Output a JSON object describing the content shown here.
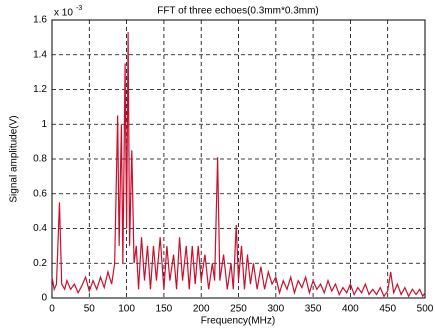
{
  "chart_data": {
    "type": "line",
    "title": "FFT of three echoes(0.3mm*0.3mm)",
    "x_label": "Frequency(MHz)",
    "y_label": "Signal amplitude(V)",
    "y_multiplier": "x 10",
    "y_multiplier_exponent": "-3",
    "color": "#c8102e",
    "grid": true,
    "xlim": [
      0,
      500
    ],
    "ylim": [
      0,
      1.6
    ],
    "xticks": [
      0,
      50,
      100,
      150,
      200,
      250,
      300,
      350,
      400,
      450,
      500
    ],
    "yticks": [
      0,
      0.2,
      0.4,
      0.6,
      0.8,
      1,
      1.2,
      1.4,
      1.6
    ],
    "x": [
      0,
      3,
      6,
      10,
      13,
      17,
      20,
      25,
      30,
      35,
      40,
      45,
      50,
      55,
      60,
      65,
      70,
      75,
      80,
      84,
      88,
      90,
      93,
      95,
      98,
      100,
      102,
      104,
      107,
      110,
      113,
      116,
      120,
      124,
      128,
      132,
      136,
      140,
      145,
      150,
      154,
      158,
      163,
      167,
      171,
      175,
      180,
      184,
      188,
      192,
      196,
      200,
      205,
      210,
      215,
      218,
      222,
      225,
      230,
      235,
      240,
      243,
      247,
      250,
      254,
      258,
      262,
      266,
      270,
      275,
      280,
      285,
      290,
      295,
      300,
      305,
      310,
      315,
      320,
      325,
      330,
      335,
      340,
      345,
      350,
      355,
      360,
      365,
      370,
      375,
      380,
      385,
      390,
      395,
      400,
      405,
      410,
      415,
      420,
      425,
      430,
      435,
      440,
      445,
      450,
      454,
      458,
      463,
      468,
      473,
      478,
      483,
      488,
      493,
      497,
      500
    ],
    "values": [
      0.12,
      0.05,
      0.08,
      0.55,
      0.08,
      0.05,
      0.1,
      0.05,
      0.08,
      0.03,
      0.07,
      0.12,
      0.04,
      0.1,
      0.05,
      0.12,
      0.06,
      0.15,
      0.08,
      0.2,
      1.05,
      0.3,
      1.0,
      0.2,
      1.35,
      0.4,
      1.53,
      0.3,
      0.85,
      0.2,
      0.3,
      0.05,
      0.35,
      0.1,
      0.3,
      0.05,
      0.3,
      0.1,
      0.35,
      0.05,
      0.3,
      0.1,
      0.25,
      0.05,
      0.35,
      0.1,
      0.3,
      0.05,
      0.3,
      0.08,
      0.3,
      0.1,
      0.25,
      0.05,
      0.2,
      0.1,
      0.81,
      0.1,
      0.25,
      0.05,
      0.2,
      0.05,
      0.42,
      0.1,
      0.3,
      0.05,
      0.25,
      0.08,
      0.2,
      0.05,
      0.18,
      0.05,
      0.15,
      0.08,
      0.12,
      0.03,
      0.1,
      0.05,
      0.12,
      0.03,
      0.1,
      0.06,
      0.12,
      0.03,
      0.1,
      0.05,
      0.08,
      0.03,
      0.1,
      0.04,
      0.08,
      0.02,
      0.06,
      0.03,
      0.08,
      0.02,
      0.06,
      0.03,
      0.08,
      0.02,
      0.05,
      0.02,
      0.06,
      0.01,
      0.04,
      0.15,
      0.03,
      0.08,
      0.02,
      0.06,
      0.01,
      0.05,
      0.02,
      0.05,
      0.01,
      0.03
    ]
  }
}
